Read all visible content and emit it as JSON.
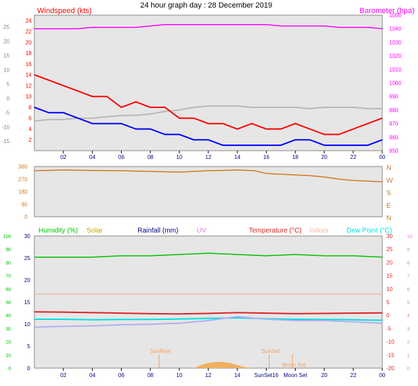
{
  "title": "24 hour graph day : 28 December 2019",
  "x_ticks": [
    "02",
    "04",
    "06",
    "08",
    "10",
    "12",
    "14",
    "16",
    "18",
    "20",
    "22",
    "00"
  ],
  "colors": {
    "wind": "#ff0000",
    "wind_avg": "#0000ff",
    "baro": "#ff00ff",
    "baro_temp_gray": "#b8b8b8",
    "direction": "#d07a20",
    "humidity": "#00c000",
    "solar": "#c8a000",
    "rain": "#000080",
    "uv": "#e080e0",
    "temp": "#dd2222",
    "indoor": "#f0b8a0",
    "dew": "#00e0e0",
    "plot_bg": "#e6e6e6"
  },
  "chart_data": [
    {
      "type": "line",
      "panel": "wind",
      "ylabel_left": "Windspeed (kts)",
      "ylabel_right": "Barometer (hpa)",
      "y_left_ticks": [
        "24",
        "22",
        "20",
        "18",
        "16",
        "14",
        "12",
        "10",
        "8",
        "6",
        "4",
        "2"
      ],
      "y_left_outer_ticks": [
        "25",
        "20",
        "15",
        "10",
        "5",
        "0",
        "-5",
        "-10",
        "-15"
      ],
      "y_right_ticks": [
        "1050",
        "1040",
        "1030",
        "1020",
        "1010",
        "1000",
        "990",
        "980",
        "970",
        "960",
        "950"
      ],
      "ylim_left": [
        0,
        25
      ],
      "ylim_right": [
        950,
        1050
      ],
      "x": [
        0,
        1,
        2,
        3,
        4,
        5,
        6,
        7,
        8,
        9,
        10,
        11,
        12,
        13,
        14,
        15,
        16,
        17,
        18,
        19,
        20,
        21,
        22,
        23,
        24
      ],
      "series": [
        {
          "key": "gust",
          "values": [
            14,
            13,
            12,
            11,
            10,
            10,
            8,
            9,
            8,
            8,
            6,
            6,
            5,
            5,
            4,
            5,
            4,
            4,
            5,
            4,
            3,
            3,
            4,
            5,
            6
          ]
        },
        {
          "key": "avg",
          "values": [
            8,
            7,
            7,
            6,
            5,
            5,
            5,
            4,
            4,
            3,
            3,
            2,
            2,
            1,
            1,
            1,
            1,
            1,
            2,
            2,
            1,
            1,
            1,
            1,
            2
          ]
        },
        {
          "key": "baro",
          "values": [
            1040,
            1040,
            1040,
            1040,
            1041,
            1041,
            1041,
            1041,
            1042,
            1043,
            1043,
            1043,
            1043,
            1043,
            1043,
            1043,
            1043,
            1042,
            1042,
            1042,
            1042,
            1041,
            1041,
            1041,
            1040
          ]
        },
        {
          "key": "temp_gray",
          "values": [
            972,
            973,
            973,
            974,
            974,
            975,
            976,
            976,
            977,
            979,
            980,
            982,
            983,
            983,
            983,
            982,
            982,
            982,
            982,
            981,
            982,
            982,
            982,
            981,
            981
          ]
        }
      ],
      "markers": [
        {
          "key": "markers",
          "values": []
        }
      ]
    },
    {
      "type": "line",
      "panel": "direction",
      "y_left_ticks": [
        "360",
        "270",
        "180",
        "90",
        "0"
      ],
      "y_right_labels": [
        "N",
        "W",
        "S",
        "E",
        "N"
      ],
      "ylim": [
        0,
        360
      ],
      "x": [
        0,
        2,
        4,
        6,
        8,
        10,
        12,
        14,
        15.2,
        16,
        18,
        19,
        20,
        21,
        22,
        23,
        24
      ],
      "series": [
        {
          "key": "dir",
          "values": [
            330,
            335,
            332,
            330,
            325,
            320,
            330,
            335,
            330,
            310,
            300,
            295,
            285,
            270,
            260,
            255,
            250
          ]
        }
      ]
    },
    {
      "type": "line",
      "panel": "multi",
      "y_far_left_ticks": [
        "100",
        "90",
        "80",
        "70",
        "60",
        "50",
        "40",
        "30",
        "20",
        "10",
        "0"
      ],
      "y_left_ticks": [
        "30",
        "25",
        "20",
        "15",
        "10",
        "5",
        "0"
      ],
      "y_right_ticks": [
        "30",
        "25",
        "20",
        "15",
        "10",
        "5",
        "0",
        "-5",
        "-10",
        "-15",
        "-20"
      ],
      "y_far_right_ticks": [
        "10",
        "9",
        "8",
        "7",
        "6",
        "5",
        "4",
        "3",
        "2",
        "1",
        "0"
      ],
      "ylim_temp": [
        -20,
        30
      ],
      "legend": [
        "Humidity (%)",
        "Solar",
        "Rainfall (mm)",
        "UV",
        "Temperature (°C)",
        "Indoor",
        "Dew Point (°C)"
      ],
      "x": [
        0,
        2,
        4,
        6,
        8,
        10,
        12,
        14,
        16,
        18,
        20,
        22,
        24
      ],
      "series": [
        {
          "key": "humidity",
          "values": [
            84,
            84,
            84,
            85,
            85,
            86,
            87,
            86,
            85,
            86,
            85,
            85,
            84
          ]
        },
        {
          "key": "indoor",
          "values": [
            56,
            56,
            56,
            56,
            56,
            56,
            56,
            56,
            56,
            56,
            56,
            56,
            56
          ]
        },
        {
          "key": "temp",
          "values": [
            1.3,
            1.2,
            1.0,
            0.8,
            0.6,
            0.5,
            0.7,
            1.0,
            0.8,
            0.6,
            0.7,
            0.8,
            0.9
          ]
        },
        {
          "key": "dew",
          "values": [
            -1.5,
            -1.5,
            -1.7,
            -1.6,
            -1.6,
            -1.4,
            -1.2,
            -1.0,
            -1.3,
            -1.5,
            -1.6,
            -1.7,
            -1.9
          ]
        },
        {
          "key": "lavender",
          "values": [
            -4.5,
            -4.2,
            -4.0,
            -3.6,
            -3.4,
            -3.0,
            -2.0,
            -0.5,
            -1.5,
            -2.0,
            -2.0,
            -2.5,
            -3.0
          ]
        }
      ],
      "solar": {
        "x": [
          11,
          11.5,
          12,
          12.5,
          13,
          13.5,
          14,
          14.5,
          15
        ],
        "values": [
          0,
          3,
          5,
          6,
          6,
          5,
          3,
          1,
          0
        ]
      },
      "events": [
        {
          "label": "SunRise",
          "hour": 8.6
        },
        {
          "label": "SunSet",
          "hour": 16.2
        },
        {
          "label": "Moon Set",
          "hour": 17.8
        }
      ],
      "x_tick_labels": [
        "02",
        "04",
        "06",
        "08",
        "10",
        "12",
        "14",
        "SunSet16",
        "Moon Set",
        "20",
        "22",
        "00"
      ]
    }
  ]
}
